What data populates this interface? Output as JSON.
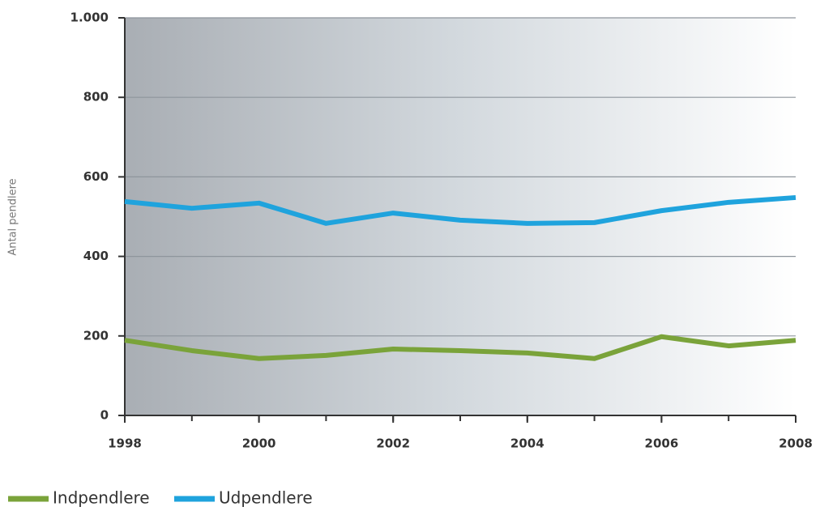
{
  "chart_data": {
    "type": "line",
    "y_label": "Antal pendlere",
    "x": [
      1998,
      1999,
      2000,
      2001,
      2002,
      2003,
      2004,
      2005,
      2006,
      2007,
      2008
    ],
    "series": [
      {
        "name": "Indpendlere",
        "color": "#7aa33a",
        "values": [
          189,
          163,
          143,
          151,
          167,
          163,
          157,
          143,
          198,
          175,
          189
        ]
      },
      {
        "name": "Udpendlere",
        "color": "#1fa3dd",
        "values": [
          538,
          521,
          534,
          483,
          509,
          491,
          483,
          485,
          515,
          536,
          548
        ]
      }
    ],
    "xlim": [
      1998,
      2008
    ],
    "xticks": [
      1998,
      2000,
      2002,
      2004,
      2006,
      2008
    ],
    "ylim": [
      0,
      1000
    ],
    "yticks": [
      0,
      200,
      400,
      600,
      800,
      {
        "value": 1000,
        "label": "1.000"
      }
    ],
    "grid": true,
    "legend": "bottom"
  }
}
